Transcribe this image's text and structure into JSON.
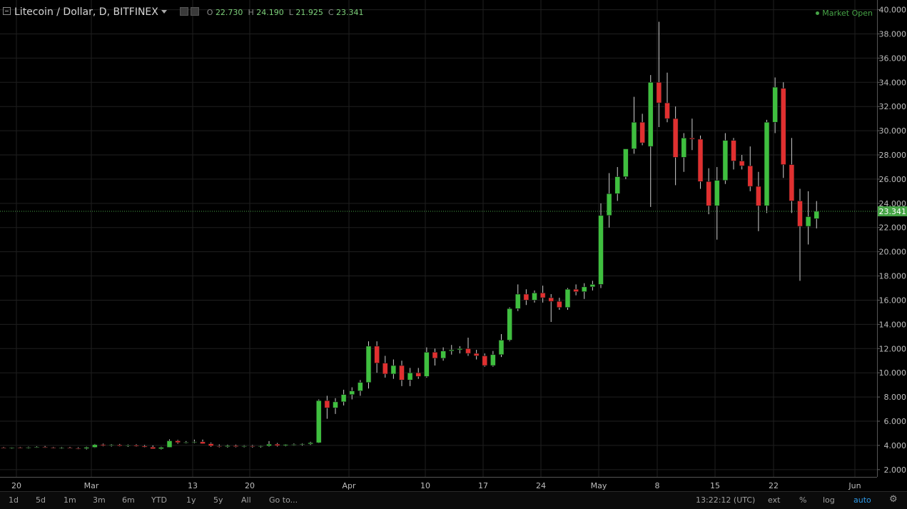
{
  "legend": {
    "symbol": "Litecoin / Dollar, D, BITFINEX",
    "o_label": "O",
    "o_value": "22.730",
    "h_label": "H",
    "h_value": "24.190",
    "l_label": "L",
    "l_value": "21.925",
    "c_label": "C",
    "c_value": "23.341"
  },
  "market_status": "Market Open",
  "colors": {
    "up": "#53b987",
    "down": "#eb4d5c",
    "up_fill": "#3fbf3f",
    "down_fill": "#e03030",
    "grid": "#1f1f1f",
    "last_price": "#46a546"
  },
  "toolbar": {
    "ranges": [
      "1d",
      "5d",
      "1m",
      "3m",
      "6m",
      "YTD",
      "1y",
      "5y",
      "All"
    ],
    "goto": "Go to...",
    "time": "13:22:12 (UTC)",
    "ext": "ext",
    "percent": "%",
    "log": "log",
    "auto": "auto"
  },
  "chart_data": {
    "type": "candlestick",
    "ylim": [
      1.4,
      40.8
    ],
    "y_ticks": [
      "2.000",
      "4.000",
      "6.000",
      "8.000",
      "10.000",
      "12.000",
      "14.000",
      "16.000",
      "18.000",
      "20.000",
      "22.000",
      "24.000",
      "26.000",
      "28.000",
      "30.000",
      "32.000",
      "34.000",
      "36.000",
      "38.000",
      "40.000"
    ],
    "last_price_label": "23.341",
    "x_ticks": [
      "20",
      "Mar",
      "13",
      "20",
      "Apr",
      "10",
      "17",
      "24",
      "May",
      "8",
      "15",
      "22",
      "Jun"
    ],
    "candles": [
      {
        "o": 3.8,
        "h": 3.86,
        "l": 3.74,
        "c": 3.78
      },
      {
        "o": 3.78,
        "h": 3.85,
        "l": 3.72,
        "c": 3.82
      },
      {
        "o": 3.82,
        "h": 3.88,
        "l": 3.75,
        "c": 3.8
      },
      {
        "o": 3.8,
        "h": 3.9,
        "l": 3.74,
        "c": 3.84
      },
      {
        "o": 3.84,
        "h": 3.92,
        "l": 3.78,
        "c": 3.86
      },
      {
        "o": 3.86,
        "h": 3.95,
        "l": 3.78,
        "c": 3.82
      },
      {
        "o": 3.82,
        "h": 3.88,
        "l": 3.74,
        "c": 3.78
      },
      {
        "o": 3.78,
        "h": 3.86,
        "l": 3.7,
        "c": 3.8
      },
      {
        "o": 3.8,
        "h": 3.88,
        "l": 3.74,
        "c": 3.76
      },
      {
        "o": 3.76,
        "h": 3.85,
        "l": 3.68,
        "c": 3.74
      },
      {
        "o": 3.74,
        "h": 3.9,
        "l": 3.66,
        "c": 3.84
      },
      {
        "o": 3.84,
        "h": 4.12,
        "l": 3.8,
        "c": 4.06
      },
      {
        "o": 4.06,
        "h": 4.15,
        "l": 3.92,
        "c": 3.98
      },
      {
        "o": 3.98,
        "h": 4.1,
        "l": 3.9,
        "c": 4.04
      },
      {
        "o": 4.04,
        "h": 4.12,
        "l": 3.92,
        "c": 3.96
      },
      {
        "o": 3.96,
        "h": 4.08,
        "l": 3.88,
        "c": 4.02
      },
      {
        "o": 4.02,
        "h": 4.1,
        "l": 3.9,
        "c": 3.94
      },
      {
        "o": 3.94,
        "h": 4.04,
        "l": 3.82,
        "c": 3.86
      },
      {
        "o": 3.86,
        "h": 4.0,
        "l": 3.78,
        "c": 3.72
      },
      {
        "o": 3.72,
        "h": 3.9,
        "l": 3.66,
        "c": 3.84
      },
      {
        "o": 3.84,
        "h": 4.5,
        "l": 3.82,
        "c": 4.38
      },
      {
        "o": 4.38,
        "h": 4.46,
        "l": 4.14,
        "c": 4.24
      },
      {
        "o": 4.24,
        "h": 4.36,
        "l": 4.16,
        "c": 4.26
      },
      {
        "o": 4.26,
        "h": 4.48,
        "l": 4.18,
        "c": 4.3
      },
      {
        "o": 4.3,
        "h": 4.48,
        "l": 4.12,
        "c": 4.14
      },
      {
        "o": 4.14,
        "h": 4.24,
        "l": 3.88,
        "c": 3.96
      },
      {
        "o": 3.96,
        "h": 4.08,
        "l": 3.84,
        "c": 3.9
      },
      {
        "o": 3.9,
        "h": 4.06,
        "l": 3.82,
        "c": 3.98
      },
      {
        "o": 3.98,
        "h": 4.06,
        "l": 3.84,
        "c": 3.9
      },
      {
        "o": 3.9,
        "h": 4.02,
        "l": 3.84,
        "c": 3.96
      },
      {
        "o": 3.96,
        "h": 4.04,
        "l": 3.82,
        "c": 3.9
      },
      {
        "o": 3.9,
        "h": 4.0,
        "l": 3.82,
        "c": 3.96
      },
      {
        "o": 3.96,
        "h": 4.36,
        "l": 3.9,
        "c": 4.1
      },
      {
        "o": 4.1,
        "h": 4.2,
        "l": 3.9,
        "c": 3.98
      },
      {
        "o": 3.98,
        "h": 4.1,
        "l": 3.92,
        "c": 4.06
      },
      {
        "o": 4.06,
        "h": 4.16,
        "l": 3.98,
        "c": 4.08
      },
      {
        "o": 4.08,
        "h": 4.18,
        "l": 3.98,
        "c": 4.12
      },
      {
        "o": 4.12,
        "h": 4.3,
        "l": 4.04,
        "c": 4.22
      },
      {
        "o": 4.22,
        "h": 7.8,
        "l": 4.18,
        "c": 7.7
      },
      {
        "o": 7.7,
        "h": 8.1,
        "l": 6.2,
        "c": 7.1
      },
      {
        "o": 7.1,
        "h": 7.9,
        "l": 6.6,
        "c": 7.6
      },
      {
        "o": 7.6,
        "h": 8.6,
        "l": 7.3,
        "c": 8.2
      },
      {
        "o": 8.2,
        "h": 8.8,
        "l": 7.8,
        "c": 8.5
      },
      {
        "o": 8.5,
        "h": 9.4,
        "l": 8.1,
        "c": 9.2
      },
      {
        "o": 9.2,
        "h": 12.6,
        "l": 8.7,
        "c": 12.2
      },
      {
        "o": 12.2,
        "h": 12.6,
        "l": 10.0,
        "c": 10.8
      },
      {
        "o": 10.8,
        "h": 11.4,
        "l": 9.6,
        "c": 9.9
      },
      {
        "o": 9.9,
        "h": 11.1,
        "l": 9.5,
        "c": 10.6
      },
      {
        "o": 10.6,
        "h": 11.0,
        "l": 8.9,
        "c": 9.4
      },
      {
        "o": 9.4,
        "h": 10.4,
        "l": 8.9,
        "c": 10.0
      },
      {
        "o": 10.0,
        "h": 10.4,
        "l": 9.5,
        "c": 9.7
      },
      {
        "o": 9.7,
        "h": 12.1,
        "l": 9.6,
        "c": 11.7
      },
      {
        "o": 11.7,
        "h": 12.0,
        "l": 10.6,
        "c": 11.2
      },
      {
        "o": 11.2,
        "h": 12.1,
        "l": 11.0,
        "c": 11.8
      },
      {
        "o": 11.8,
        "h": 12.3,
        "l": 11.5,
        "c": 11.9
      },
      {
        "o": 11.9,
        "h": 12.2,
        "l": 11.6,
        "c": 12.0
      },
      {
        "o": 12.0,
        "h": 12.9,
        "l": 11.4,
        "c": 11.6
      },
      {
        "o": 11.6,
        "h": 11.9,
        "l": 11.1,
        "c": 11.4
      },
      {
        "o": 11.4,
        "h": 11.6,
        "l": 10.5,
        "c": 10.6
      },
      {
        "o": 10.6,
        "h": 11.8,
        "l": 10.5,
        "c": 11.5
      },
      {
        "o": 11.5,
        "h": 13.2,
        "l": 11.3,
        "c": 12.7
      },
      {
        "o": 12.7,
        "h": 15.4,
        "l": 12.6,
        "c": 15.3
      },
      {
        "o": 15.3,
        "h": 17.3,
        "l": 15.1,
        "c": 16.5
      },
      {
        "o": 16.5,
        "h": 16.9,
        "l": 15.6,
        "c": 16.0
      },
      {
        "o": 16.0,
        "h": 16.8,
        "l": 15.8,
        "c": 16.6
      },
      {
        "o": 16.6,
        "h": 17.2,
        "l": 15.8,
        "c": 16.2
      },
      {
        "o": 16.2,
        "h": 16.5,
        "l": 14.2,
        "c": 15.9
      },
      {
        "o": 15.9,
        "h": 16.2,
        "l": 15.2,
        "c": 15.4
      },
      {
        "o": 15.4,
        "h": 17.0,
        "l": 15.2,
        "c": 16.9
      },
      {
        "o": 16.9,
        "h": 17.3,
        "l": 16.4,
        "c": 16.7
      },
      {
        "o": 16.7,
        "h": 17.4,
        "l": 16.1,
        "c": 17.1
      },
      {
        "o": 17.1,
        "h": 17.6,
        "l": 16.8,
        "c": 17.3
      },
      {
        "o": 17.3,
        "h": 24.0,
        "l": 17.0,
        "c": 23.0
      },
      {
        "o": 23.0,
        "h": 26.5,
        "l": 22.0,
        "c": 24.8
      },
      {
        "o": 24.8,
        "h": 27.0,
        "l": 24.2,
        "c": 26.2
      },
      {
        "o": 26.2,
        "h": 28.2,
        "l": 26.0,
        "c": 28.5
      },
      {
        "o": 28.5,
        "h": 32.8,
        "l": 28.1,
        "c": 30.7
      },
      {
        "o": 30.7,
        "h": 31.4,
        "l": 28.8,
        "c": 29.0
      },
      {
        "o": 28.7,
        "h": 34.6,
        "l": 23.7,
        "c": 34.0
      },
      {
        "o": 34.0,
        "h": 39.0,
        "l": 30.3,
        "c": 32.3
      },
      {
        "o": 32.3,
        "h": 34.8,
        "l": 30.7,
        "c": 31.0
      },
      {
        "o": 31.0,
        "h": 32.0,
        "l": 25.5,
        "c": 27.8
      },
      {
        "o": 27.8,
        "h": 29.8,
        "l": 26.6,
        "c": 29.4
      },
      {
        "o": 29.4,
        "h": 31.0,
        "l": 28.4,
        "c": 29.3
      },
      {
        "o": 29.3,
        "h": 29.6,
        "l": 25.2,
        "c": 25.8
      },
      {
        "o": 25.8,
        "h": 26.9,
        "l": 23.1,
        "c": 23.8
      },
      {
        "o": 23.8,
        "h": 27.0,
        "l": 21.0,
        "c": 25.9
      },
      {
        "o": 25.9,
        "h": 29.8,
        "l": 25.6,
        "c": 29.2
      },
      {
        "o": 29.2,
        "h": 29.4,
        "l": 26.8,
        "c": 27.5
      },
      {
        "o": 27.5,
        "h": 28.0,
        "l": 26.8,
        "c": 27.1
      },
      {
        "o": 27.1,
        "h": 28.7,
        "l": 25.0,
        "c": 25.4
      },
      {
        "o": 25.4,
        "h": 26.6,
        "l": 21.7,
        "c": 23.8
      },
      {
        "o": 23.8,
        "h": 30.9,
        "l": 23.2,
        "c": 30.7
      },
      {
        "o": 30.7,
        "h": 34.4,
        "l": 29.8,
        "c": 33.6
      },
      {
        "o": 33.5,
        "h": 34.0,
        "l": 26.1,
        "c": 27.2
      },
      {
        "o": 27.2,
        "h": 29.4,
        "l": 23.2,
        "c": 24.2
      },
      {
        "o": 24.2,
        "h": 25.2,
        "l": 17.6,
        "c": 22.1
      },
      {
        "o": 22.1,
        "h": 25.0,
        "l": 20.6,
        "c": 22.9
      },
      {
        "o": 22.73,
        "h": 24.19,
        "l": 21.93,
        "c": 23.34
      }
    ]
  }
}
